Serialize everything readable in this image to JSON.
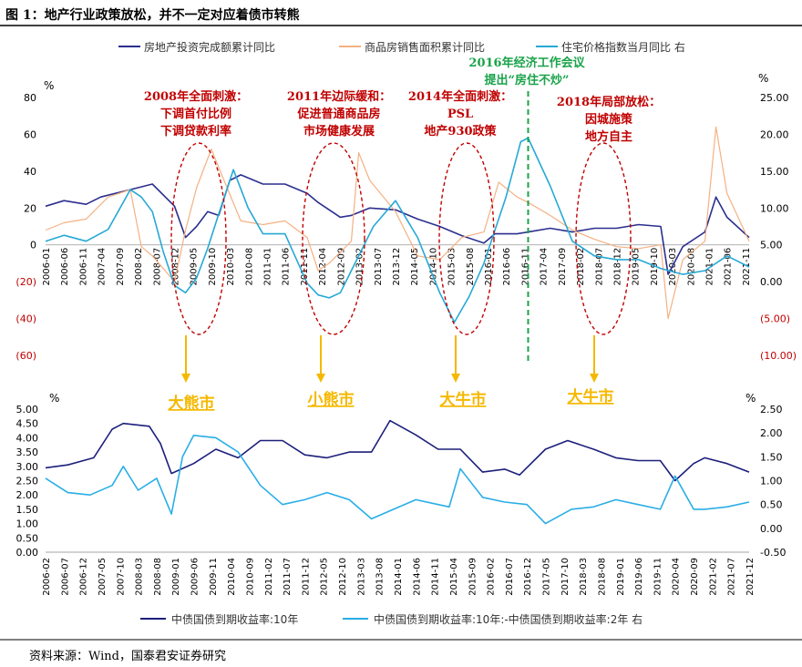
{
  "page_title": "图 1：地产行业政策放松，并不一定对应着债市转熊",
  "source": "资料来源：Wind，国泰君安证券研究",
  "colors": {
    "investment": "#2b2f8f",
    "sales": "#f4b183",
    "price": "#26a9d6",
    "yield10": "#1c1f7a",
    "spread": "#29aee6",
    "annotation": "#c00000",
    "arrow": "#f5b800",
    "green": "#1aa34a",
    "neg_label": "#c00000"
  },
  "chart_data": [
    {
      "type": "line",
      "legend": [
        "房地产投资完成额累计同比",
        "商品房销售面积累计同比",
        "住宅价格指数当月同比 右"
      ],
      "left_unit": "%",
      "right_unit": "%",
      "ylim_left": [
        -60,
        80
      ],
      "ylim_right": [
        -10,
        25
      ],
      "yticks_left": [
        "80",
        "60",
        "40",
        "20",
        "0",
        "(20)",
        "(40)",
        "(60)"
      ],
      "yticks_right": [
        "25.00",
        "20.00",
        "15.00",
        "10.00",
        "5.00",
        "0.00",
        "(5.00)",
        "(10.00)"
      ],
      "xticks": [
        "2006-01",
        "2006-06",
        "2006-11",
        "2007-04",
        "2007-09",
        "2008-02",
        "2008-07",
        "2008-12",
        "2009-05",
        "2009-10",
        "2010-03",
        "2010-08",
        "2011-01",
        "2011-06",
        "2011-11",
        "2012-04",
        "2012-09",
        "2013-02",
        "2013-07",
        "2013-12",
        "2014-05",
        "2014-10",
        "2015-03",
        "2015-08",
        "2016-01",
        "2016-06",
        "2016-11",
        "2017-04",
        "2017-09",
        "2018-02",
        "2018-07",
        "2018-12",
        "2019-05",
        "2019-10",
        "2020-03",
        "2020-08",
        "2021-01",
        "2021-06",
        "2021-11"
      ],
      "x_range": [
        "2006-01",
        "2021-12"
      ],
      "series": [
        {
          "name": "房地产投资完成额累计同比",
          "axis": "left",
          "points": [
            [
              "2006-01",
              21
            ],
            [
              "2006-06",
              24
            ],
            [
              "2006-12",
              22
            ],
            [
              "2007-04",
              26
            ],
            [
              "2007-12",
              30
            ],
            [
              "2008-06",
              33
            ],
            [
              "2008-12",
              21
            ],
            [
              "2009-03",
              4
            ],
            [
              "2009-06",
              10
            ],
            [
              "2009-09",
              18
            ],
            [
              "2009-12",
              16
            ],
            [
              "2010-03",
              35
            ],
            [
              "2010-06",
              38
            ],
            [
              "2010-12",
              33
            ],
            [
              "2011-06",
              33
            ],
            [
              "2011-12",
              28
            ],
            [
              "2012-03",
              23
            ],
            [
              "2012-09",
              15
            ],
            [
              "2012-12",
              16
            ],
            [
              "2013-05",
              20
            ],
            [
              "2013-12",
              19
            ],
            [
              "2014-06",
              14
            ],
            [
              "2014-12",
              10
            ],
            [
              "2015-06",
              5
            ],
            [
              "2015-12",
              1
            ],
            [
              "2016-03",
              6
            ],
            [
              "2016-09",
              6
            ],
            [
              "2016-12",
              7
            ],
            [
              "2017-06",
              9
            ],
            [
              "2017-12",
              7
            ],
            [
              "2018-06",
              9
            ],
            [
              "2018-12",
              9
            ],
            [
              "2019-06",
              11
            ],
            [
              "2019-12",
              10
            ],
            [
              "2020-02",
              -16
            ],
            [
              "2020-06",
              -1
            ],
            [
              "2020-12",
              7
            ],
            [
              "2021-03",
              26
            ],
            [
              "2021-06",
              15
            ],
            [
              "2021-12",
              4
            ]
          ]
        },
        {
          "name": "商品房销售面积累计同比",
          "axis": "left",
          "points": [
            [
              "2006-01",
              8
            ],
            [
              "2006-06",
              12
            ],
            [
              "2006-12",
              14
            ],
            [
              "2007-06",
              26
            ],
            [
              "2007-12",
              30
            ],
            [
              "2008-03",
              -1
            ],
            [
              "2008-06",
              -6
            ],
            [
              "2008-12",
              -20
            ],
            [
              "2009-03",
              8
            ],
            [
              "2009-06",
              31
            ],
            [
              "2009-10",
              52
            ],
            [
              "2009-12",
              42
            ],
            [
              "2010-06",
              13
            ],
            [
              "2010-12",
              11
            ],
            [
              "2011-06",
              13
            ],
            [
              "2011-12",
              4
            ],
            [
              "2012-03",
              -14
            ],
            [
              "2012-06",
              -10
            ],
            [
              "2012-12",
              2
            ],
            [
              "2013-02",
              50
            ],
            [
              "2013-05",
              35
            ],
            [
              "2013-12",
              18
            ],
            [
              "2014-06",
              -6
            ],
            [
              "2014-12",
              -8
            ],
            [
              "2015-06",
              4
            ],
            [
              "2015-12",
              7
            ],
            [
              "2016-04",
              34
            ],
            [
              "2016-09",
              26
            ],
            [
              "2016-12",
              23
            ],
            [
              "2017-06",
              16
            ],
            [
              "2017-12",
              8
            ],
            [
              "2018-06",
              3
            ],
            [
              "2018-12",
              -1
            ],
            [
              "2019-06",
              -2
            ],
            [
              "2019-12",
              0
            ],
            [
              "2020-02",
              -40
            ],
            [
              "2020-06",
              -8
            ],
            [
              "2020-12",
              2
            ],
            [
              "2021-03",
              64
            ],
            [
              "2021-06",
              28
            ],
            [
              "2021-12",
              2
            ]
          ]
        },
        {
          "name": "住宅价格指数当月同比 右",
          "axis": "right",
          "points": [
            [
              "2006-01",
              5.5
            ],
            [
              "2006-06",
              6.3
            ],
            [
              "2006-12",
              5.5
            ],
            [
              "2007-06",
              7.1
            ],
            [
              "2007-12",
              12.5
            ],
            [
              "2008-03",
              11.5
            ],
            [
              "2008-06",
              9.5
            ],
            [
              "2008-09",
              4.0
            ],
            [
              "2008-12",
              -0.5
            ],
            [
              "2009-03",
              -1.5
            ],
            [
              "2009-06",
              0.5
            ],
            [
              "2009-09",
              4.5
            ],
            [
              "2009-12",
              9.2
            ],
            [
              "2010-04",
              15.2
            ],
            [
              "2010-08",
              10.0
            ],
            [
              "2010-12",
              6.5
            ],
            [
              "2011-06",
              6.5
            ],
            [
              "2011-12",
              -0.2
            ],
            [
              "2012-03",
              -1.8
            ],
            [
              "2012-06",
              -2.2
            ],
            [
              "2012-09",
              -1.5
            ],
            [
              "2012-12",
              1.5
            ],
            [
              "2013-06",
              7.5
            ],
            [
              "2013-12",
              11.0
            ],
            [
              "2014-06",
              6.0
            ],
            [
              "2014-12",
              -1.5
            ],
            [
              "2015-04",
              -5.5
            ],
            [
              "2015-08",
              -2.0
            ],
            [
              "2015-12",
              2.5
            ],
            [
              "2016-06",
              11.5
            ],
            [
              "2016-10",
              19.0
            ],
            [
              "2016-12",
              19.5
            ],
            [
              "2017-06",
              13.0
            ],
            [
              "2017-12",
              5.5
            ],
            [
              "2018-06",
              3.5
            ],
            [
              "2018-12",
              3.0
            ],
            [
              "2019-06",
              3.0
            ],
            [
              "2019-12",
              1.8
            ],
            [
              "2020-06",
              1.0
            ],
            [
              "2020-12",
              1.5
            ],
            [
              "2021-06",
              3.5
            ],
            [
              "2021-12",
              2.0
            ]
          ]
        }
      ],
      "annotations": [
        {
          "lines": [
            "2008年全面刺激：",
            "下调首付比例",
            "下调贷款利率"
          ]
        },
        {
          "lines": [
            "2011年边际缓和：",
            "促进普通商品房",
            "市场健康发展"
          ]
        },
        {
          "lines": [
            "2014年全面刺激：",
            "PSL",
            "地产930政策"
          ]
        },
        {
          "lines": [
            "2016年经济工作会议",
            "提出“房住不炒”"
          ]
        },
        {
          "lines": [
            "2018年局部放松：",
            "因城施策",
            "地方自主"
          ]
        }
      ],
      "market_labels": [
        "大熊市",
        "小熊市",
        "大牛市",
        "大牛市"
      ]
    },
    {
      "type": "line",
      "legend": [
        "中债国债到期收益率:10年",
        "中债国债到期收益率:10年:-中债国债到期收益率:2年 右"
      ],
      "left_unit": "%",
      "right_unit": "%",
      "ylim_left": [
        0,
        5
      ],
      "ylim_right": [
        -0.5,
        2.5
      ],
      "yticks_left": [
        "5.00",
        "4.50",
        "4.00",
        "3.50",
        "3.00",
        "2.50",
        "2.00",
        "1.50",
        "1.00",
        "0.50",
        "0.00"
      ],
      "yticks_right": [
        "2.50",
        "2.00",
        "1.50",
        "1.00",
        "0.50",
        "0.00",
        "-0.50"
      ],
      "xticks": [
        "2006-02",
        "2006-07",
        "2006-12",
        "2007-05",
        "2007-10",
        "2008-03",
        "2008-08",
        "2009-01",
        "2009-06",
        "2009-11",
        "2010-04",
        "2010-09",
        "2011-02",
        "2011-07",
        "2011-12",
        "2012-05",
        "2012-10",
        "2013-03",
        "2013-08",
        "2014-01",
        "2014-06",
        "2014-11",
        "2015-04",
        "2015-09",
        "2016-02",
        "2016-07",
        "2016-12",
        "2017-05",
        "2017-10",
        "2018-03",
        "2018-08",
        "2019-01",
        "2019-06",
        "2019-11",
        "2020-04",
        "2020-09",
        "2021-02",
        "2021-07",
        "2021-12"
      ],
      "x_range": [
        "2006-02",
        "2021-12"
      ],
      "series": [
        {
          "name": "中债国债到期收益率:10年",
          "axis": "left",
          "points": [
            [
              "2006-02",
              2.95
            ],
            [
              "2006-08",
              3.05
            ],
            [
              "2007-03",
              3.3
            ],
            [
              "2007-08",
              4.3
            ],
            [
              "2007-11",
              4.5
            ],
            [
              "2008-06",
              4.4
            ],
            [
              "2008-09",
              3.8
            ],
            [
              "2008-12",
              2.75
            ],
            [
              "2009-06",
              3.1
            ],
            [
              "2009-12",
              3.6
            ],
            [
              "2010-06",
              3.3
            ],
            [
              "2010-12",
              3.9
            ],
            [
              "2011-06",
              3.9
            ],
            [
              "2011-12",
              3.4
            ],
            [
              "2012-06",
              3.3
            ],
            [
              "2012-12",
              3.5
            ],
            [
              "2013-06",
              3.5
            ],
            [
              "2013-11",
              4.6
            ],
            [
              "2014-06",
              4.1
            ],
            [
              "2014-12",
              3.6
            ],
            [
              "2015-06",
              3.6
            ],
            [
              "2015-12",
              2.8
            ],
            [
              "2016-06",
              2.9
            ],
            [
              "2016-10",
              2.7
            ],
            [
              "2017-05",
              3.6
            ],
            [
              "2017-11",
              3.9
            ],
            [
              "2018-06",
              3.6
            ],
            [
              "2018-12",
              3.3
            ],
            [
              "2019-06",
              3.2
            ],
            [
              "2019-12",
              3.2
            ],
            [
              "2020-04",
              2.5
            ],
            [
              "2020-09",
              3.1
            ],
            [
              "2020-12",
              3.3
            ],
            [
              "2021-06",
              3.1
            ],
            [
              "2021-12",
              2.8
            ]
          ]
        },
        {
          "name": "中债国债到期收益率:10年:-中债国债到期收益率:2年 右",
          "axis": "right",
          "points": [
            [
              "2006-02",
              1.05
            ],
            [
              "2006-08",
              0.75
            ],
            [
              "2007-02",
              0.7
            ],
            [
              "2007-08",
              0.9
            ],
            [
              "2007-11",
              1.3
            ],
            [
              "2008-03",
              0.8
            ],
            [
              "2008-08",
              1.05
            ],
            [
              "2008-12",
              0.3
            ],
            [
              "2009-03",
              1.5
            ],
            [
              "2009-06",
              1.95
            ],
            [
              "2009-12",
              1.9
            ],
            [
              "2010-06",
              1.6
            ],
            [
              "2010-12",
              0.9
            ],
            [
              "2011-06",
              0.5
            ],
            [
              "2011-12",
              0.6
            ],
            [
              "2012-06",
              0.75
            ],
            [
              "2012-12",
              0.6
            ],
            [
              "2013-06",
              0.2
            ],
            [
              "2013-12",
              0.4
            ],
            [
              "2014-06",
              0.6
            ],
            [
              "2014-12",
              0.5
            ],
            [
              "2015-03",
              0.45
            ],
            [
              "2015-06",
              1.25
            ],
            [
              "2015-12",
              0.65
            ],
            [
              "2016-06",
              0.55
            ],
            [
              "2016-12",
              0.5
            ],
            [
              "2017-05",
              0.1
            ],
            [
              "2017-12",
              0.4
            ],
            [
              "2018-06",
              0.45
            ],
            [
              "2018-12",
              0.6
            ],
            [
              "2019-06",
              0.5
            ],
            [
              "2019-12",
              0.4
            ],
            [
              "2020-04",
              1.1
            ],
            [
              "2020-09",
              0.4
            ],
            [
              "2020-12",
              0.4
            ],
            [
              "2021-06",
              0.45
            ],
            [
              "2021-12",
              0.55
            ]
          ]
        }
      ]
    }
  ]
}
